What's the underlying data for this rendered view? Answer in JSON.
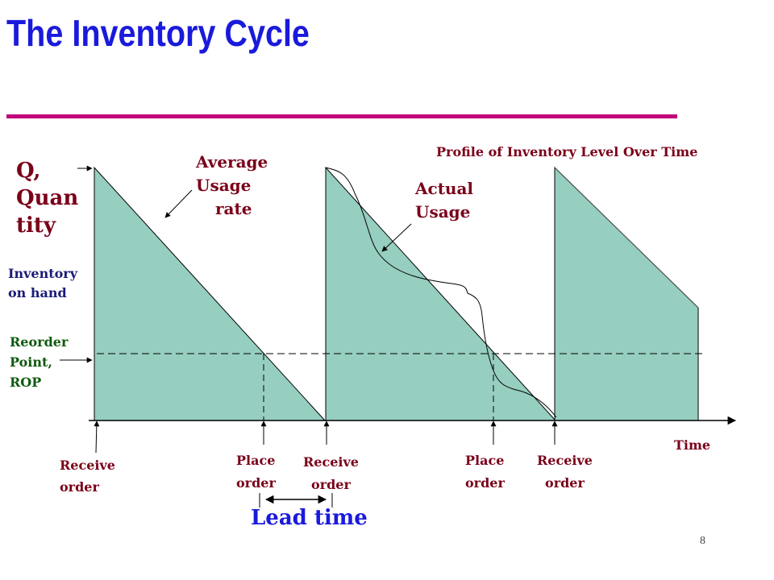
{
  "title": "The Inventory Cycle",
  "chart_title": "Profile of Inventory Level Over Time",
  "labels": {
    "quantity_line1": "Q,",
    "quantity_line2": "Quan",
    "quantity_line3": "tity",
    "inventory_line1": "Inventory",
    "inventory_line2": "on hand",
    "rop_line1": "Reorder",
    "rop_line2": "Point,",
    "rop_line3": "ROP",
    "avg_line1": "Average",
    "avg_line2": "Usage",
    "avg_line3": "rate",
    "actual_line1": "Actual",
    "actual_line2": "Usage",
    "time": "Time",
    "lead_time": "Lead time"
  },
  "events": [
    {
      "line1": "Receive",
      "line2": "order"
    },
    {
      "line1": "Place",
      "line2": "order"
    },
    {
      "line1": "Receive",
      "line2": "order"
    },
    {
      "line1": "Place",
      "line2": "order"
    },
    {
      "line1": "Receive",
      "line2": "order"
    }
  ],
  "page_number": "8",
  "colors": {
    "title": "#1a1adc",
    "rule": "#c0007a",
    "fill": "#96cebf",
    "label": "#7a0019",
    "rop_label": "#0f5a0f",
    "lead_time": "#1a1adc"
  }
}
